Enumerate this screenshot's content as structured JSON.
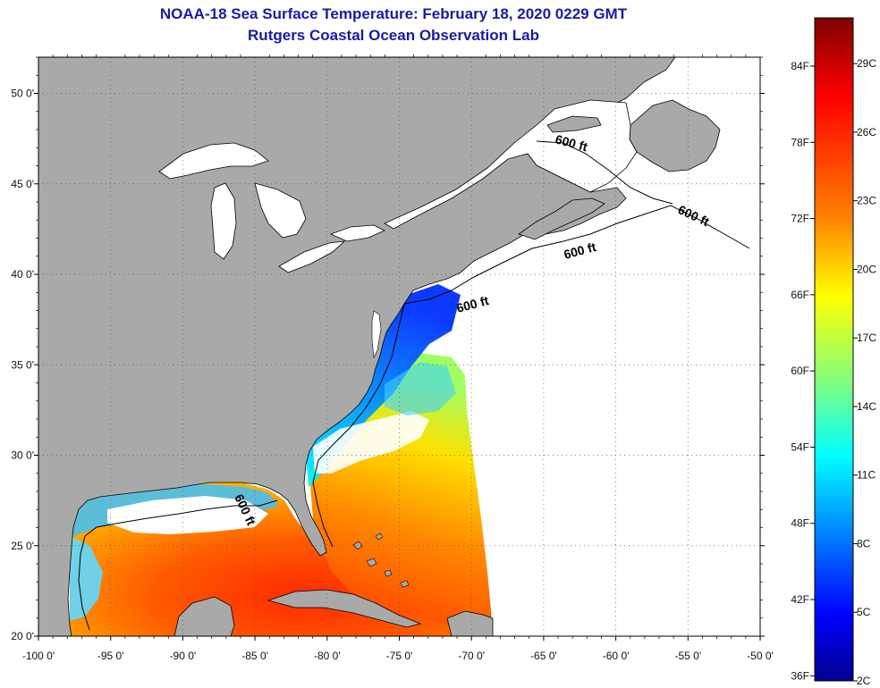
{
  "header": {
    "title": "NOAA-18 Sea Surface Temperature:  February 18, 2020 0229 GMT",
    "subtitle": "Rutgers Coastal Ocean Observation Lab"
  },
  "map": {
    "lon_range": [
      -100,
      -50
    ],
    "lat_range": [
      20,
      52
    ],
    "lon_ticks": [
      {
        "value": -100,
        "label": "-100 0'"
      },
      {
        "value": -95,
        "label": "-95 0'"
      },
      {
        "value": -90,
        "label": "-90 0'"
      },
      {
        "value": -85,
        "label": "-85 0'"
      },
      {
        "value": -80,
        "label": "-80 0'"
      },
      {
        "value": -75,
        "label": "-75 0'"
      },
      {
        "value": -70,
        "label": "-70 0'"
      },
      {
        "value": -65,
        "label": "-65 0'"
      },
      {
        "value": -60,
        "label": "-60 0'"
      },
      {
        "value": -55,
        "label": "-55 0'"
      },
      {
        "value": -50,
        "label": "-50 0'"
      }
    ],
    "lat_ticks": [
      {
        "value": 20,
        "label": "20 0'"
      },
      {
        "value": 25,
        "label": "25 0'"
      },
      {
        "value": 30,
        "label": "30 0'"
      },
      {
        "value": 35,
        "label": "35 0'"
      },
      {
        "value": 40,
        "label": "40 0'"
      },
      {
        "value": 45,
        "label": "45 0'"
      },
      {
        "value": 50,
        "label": "50 0'"
      }
    ],
    "contour_labels": [
      "600 ft",
      "600 ft",
      "600 ft",
      "600 ft",
      "600 ft"
    ],
    "colors": {
      "land": "#a9a9a9",
      "missing": "#ffffff",
      "grid": "#555555"
    }
  },
  "colorbar": {
    "fahrenheit_labels": [
      "84F",
      "78F",
      "72F",
      "66F",
      "60F",
      "54F",
      "48F",
      "42F",
      "36F"
    ],
    "celsius_labels": [
      "29C",
      "26C",
      "23C",
      "20C",
      "17C",
      "14C",
      "11C",
      "8C",
      "5C",
      "2C"
    ],
    "range_c": [
      2,
      31
    ],
    "colors": [
      "#00008f",
      "#0000ff",
      "#0080ff",
      "#00ffff",
      "#80ff80",
      "#ffff00",
      "#ff8000",
      "#ff0000",
      "#800000"
    ]
  }
}
